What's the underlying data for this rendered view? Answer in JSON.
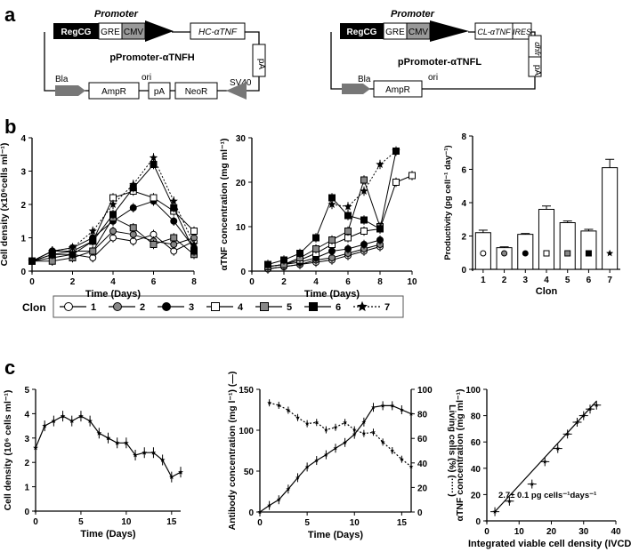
{
  "panel_labels": {
    "a": "a",
    "b": "b",
    "c": "c"
  },
  "plasmids": {
    "heavy": {
      "promoter_label": "Promoter",
      "blocks": [
        "RegCG",
        "GRE",
        "CMV"
      ],
      "gene": "HC-αTNF",
      "name": "pPromoter-αTNFH",
      "pA_right": "pA",
      "sv40": "SV40",
      "bla": "Bla",
      "ampr": "AmpR",
      "ori": "ori",
      "pA_bottom": "pA",
      "neor": "NeoR"
    },
    "light": {
      "promoter_label": "Promoter",
      "blocks": [
        "RegCG",
        "GRE",
        "CMV"
      ],
      "gene": "CL-αTNF",
      "ires": "IRES",
      "dhfr": "dhfr",
      "pA_right": "pA",
      "name": "pPromoter-αTNFL",
      "bla": "Bla",
      "ampr": "AmpR",
      "ori": "ori"
    }
  },
  "legend": {
    "title": "Clon",
    "items": [
      {
        "label": "1",
        "marker": "circle-open"
      },
      {
        "label": "2",
        "marker": "circle-gray"
      },
      {
        "label": "3",
        "marker": "circle-black"
      },
      {
        "label": "4",
        "marker": "square-open"
      },
      {
        "label": "5",
        "marker": "square-gray"
      },
      {
        "label": "6",
        "marker": "square-black"
      },
      {
        "label": "7",
        "marker": "star"
      }
    ]
  },
  "chart_data": [
    {
      "id": "b1",
      "type": "line",
      "ylabel": "Cell density (x10⁶cells ml⁻¹)",
      "xlabel": "Time (Days)",
      "xlim": [
        0,
        8
      ],
      "ylim": [
        0,
        4
      ],
      "xticks": [
        "0",
        "2",
        "4",
        "6",
        "8"
      ],
      "yticks": [
        "0",
        "1",
        "2",
        "3",
        "4"
      ],
      "series": [
        {
          "name": "1",
          "x": [
            0,
            1,
            2,
            3,
            4,
            5,
            6,
            7,
            8
          ],
          "y": [
            0.3,
            0.4,
            0.5,
            0.4,
            1.0,
            0.9,
            1.1,
            0.6,
            0.9
          ]
        },
        {
          "name": "2",
          "x": [
            0,
            1,
            2,
            3,
            4,
            5,
            6,
            7,
            8
          ],
          "y": [
            0.3,
            0.6,
            0.6,
            0.6,
            1.2,
            1.1,
            0.9,
            0.8,
            1.0
          ]
        },
        {
          "name": "3",
          "x": [
            0,
            1,
            2,
            3,
            4,
            5,
            6,
            7,
            8
          ],
          "y": [
            0.3,
            0.6,
            0.7,
            1.0,
            1.5,
            1.9,
            2.1,
            1.5,
            0.7
          ]
        },
        {
          "name": "4",
          "x": [
            0,
            1,
            2,
            3,
            4,
            5,
            6,
            7,
            8
          ],
          "y": [
            0.3,
            0.5,
            0.6,
            0.9,
            2.2,
            2.4,
            2.2,
            1.8,
            1.2
          ]
        },
        {
          "name": "5",
          "x": [
            0,
            1,
            2,
            3,
            4,
            5,
            6,
            7,
            8
          ],
          "y": [
            0.3,
            0.3,
            0.4,
            0.6,
            1.6,
            1.3,
            0.8,
            1.0,
            0.5
          ]
        },
        {
          "name": "6",
          "x": [
            0,
            1,
            2,
            3,
            4,
            5,
            6,
            7,
            8
          ],
          "y": [
            0.3,
            0.5,
            0.5,
            0.9,
            1.7,
            2.5,
            3.2,
            1.9,
            0.6
          ]
        },
        {
          "name": "7",
          "x": [
            0,
            1,
            2,
            3,
            4,
            5,
            6,
            7,
            8
          ],
          "y": [
            0.3,
            0.6,
            0.7,
            1.2,
            2.0,
            2.6,
            3.4,
            2.1,
            0.8
          ]
        }
      ]
    },
    {
      "id": "b2",
      "type": "line",
      "ylabel": "αTNF concentration (mg ml⁻¹)",
      "xlabel": "Time (Days)",
      "xlim": [
        0,
        10
      ],
      "ylim": [
        0,
        30
      ],
      "xticks": [
        "0",
        "2",
        "4",
        "6",
        "8",
        "10"
      ],
      "yticks": [
        "0",
        "10",
        "20",
        "30"
      ],
      "series": [
        {
          "name": "1",
          "x": [
            1,
            2,
            3,
            4,
            5,
            6,
            7,
            8
          ],
          "y": [
            0.5,
            1.0,
            1.5,
            2.0,
            2.5,
            3.5,
            4.5,
            5.5
          ]
        },
        {
          "name": "2",
          "x": [
            1,
            2,
            3,
            4,
            5,
            6,
            7,
            8
          ],
          "y": [
            0.5,
            1.0,
            1.5,
            2.5,
            3.0,
            4.0,
            5.0,
            6.0
          ]
        },
        {
          "name": "3",
          "x": [
            1,
            2,
            3,
            4,
            5,
            6,
            7,
            8
          ],
          "y": [
            1.0,
            1.5,
            2.0,
            3.0,
            4.5,
            5.0,
            6.0,
            7.0
          ]
        },
        {
          "name": "4",
          "x": [
            1,
            2,
            3,
            4,
            5,
            6,
            7,
            8,
            9,
            10
          ],
          "y": [
            1.0,
            1.5,
            2.5,
            4.0,
            6.0,
            7.5,
            9.0,
            9.5,
            20.0,
            21.5
          ]
        },
        {
          "name": "5",
          "x": [
            1,
            2,
            3,
            4,
            5,
            6,
            7,
            8
          ],
          "y": [
            1.0,
            1.5,
            3.0,
            5.0,
            7.0,
            9.0,
            20.5,
            10.0
          ]
        },
        {
          "name": "6",
          "x": [
            1,
            2,
            3,
            4,
            5,
            6,
            7,
            8,
            9
          ],
          "y": [
            1.5,
            2.5,
            4.0,
            7.5,
            16.5,
            12.5,
            11.5,
            9.5,
            27.0
          ]
        },
        {
          "name": "7",
          "x": [
            5,
            6,
            7,
            8,
            9
          ],
          "y": [
            15.0,
            14.5,
            18.0,
            24.0,
            27.0
          ]
        }
      ]
    },
    {
      "id": "b3",
      "type": "bar",
      "ylabel": "Productivity (pg cell⁻¹ day⁻¹)",
      "xlabel": "Clon",
      "ylim": [
        0,
        8
      ],
      "yticks": [
        "0",
        "2",
        "4",
        "6",
        "8"
      ],
      "categories": [
        "1",
        "2",
        "3",
        "4",
        "5",
        "6",
        "7"
      ],
      "values": [
        2.2,
        1.3,
        2.1,
        3.6,
        2.8,
        2.3,
        6.1
      ],
      "errors": [
        0.15,
        0.05,
        0.05,
        0.2,
        0.1,
        0.1,
        0.5
      ]
    },
    {
      "id": "c1",
      "type": "line",
      "ylabel": "Cell density (10⁶ cells ml⁻¹)",
      "xlabel": "Time (Days)",
      "xlim": [
        0,
        16
      ],
      "ylim": [
        0,
        5
      ],
      "xticks": [
        "0",
        "5",
        "10",
        "15"
      ],
      "yticks": [
        "0",
        "1",
        "2",
        "3",
        "4",
        "5"
      ],
      "series": [
        {
          "name": "cell density",
          "x": [
            0,
            1,
            2,
            3,
            4,
            5,
            6,
            7,
            8,
            9,
            10,
            11,
            12,
            13,
            14,
            15,
            16
          ],
          "y": [
            2.6,
            3.5,
            3.7,
            3.9,
            3.7,
            3.9,
            3.7,
            3.2,
            3.0,
            2.8,
            2.8,
            2.3,
            2.4,
            2.4,
            2.1,
            1.4,
            1.6
          ]
        }
      ]
    },
    {
      "id": "c2",
      "type": "line",
      "ylabel": "Antibody concentration (mg l⁻¹) (—)",
      "y2label": "Living cells (%) (·····)",
      "xlabel": "Time (Days)",
      "xlim": [
        0,
        16
      ],
      "ylim": [
        0,
        150
      ],
      "y2lim": [
        0,
        100
      ],
      "xticks": [
        "0",
        "5",
        "10",
        "15"
      ],
      "yticks": [
        "0",
        "50",
        "100",
        "150"
      ],
      "y2ticks": [
        "0",
        "20",
        "40",
        "60",
        "80",
        "100"
      ],
      "series": [
        {
          "name": "antibody",
          "x": [
            0,
            1,
            2,
            3,
            4,
            5,
            6,
            7,
            8,
            9,
            10,
            11,
            12,
            13,
            14,
            15,
            16
          ],
          "y": [
            0,
            8,
            15,
            28,
            42,
            55,
            63,
            70,
            78,
            85,
            95,
            110,
            128,
            130,
            130,
            125,
            120
          ]
        },
        {
          "name": "living cells",
          "axis": "y2",
          "x": [
            1,
            2,
            3,
            4,
            5,
            6,
            7,
            8,
            9,
            10,
            11,
            12,
            13,
            14,
            15,
            16
          ],
          "y": [
            89,
            87,
            83,
            77,
            72,
            73,
            67,
            69,
            73,
            67,
            64,
            65,
            57,
            50,
            43,
            37
          ]
        }
      ]
    },
    {
      "id": "c3",
      "type": "scatter",
      "ylabel": "αTNF concentration (mg ml⁻¹)",
      "xlabel": "Integrated viable cell density (IVCD)",
      "xlim": [
        0,
        40
      ],
      "ylim": [
        0,
        100
      ],
      "xticks": [
        "0",
        "10",
        "20",
        "30",
        "40"
      ],
      "yticks": [
        "0",
        "20",
        "40",
        "60",
        "80",
        "100"
      ],
      "annotation": "2.7± 0.1 pg cells⁻¹days⁻¹",
      "series": [
        {
          "name": "points",
          "x": [
            2.5,
            7,
            14,
            18,
            22,
            25,
            28,
            30,
            32,
            34
          ],
          "y": [
            7,
            15,
            28,
            45,
            55,
            66,
            75,
            80,
            85,
            88
          ]
        },
        {
          "name": "fit",
          "x": [
            2.5,
            34
          ],
          "y": [
            7,
            91
          ]
        }
      ]
    }
  ]
}
